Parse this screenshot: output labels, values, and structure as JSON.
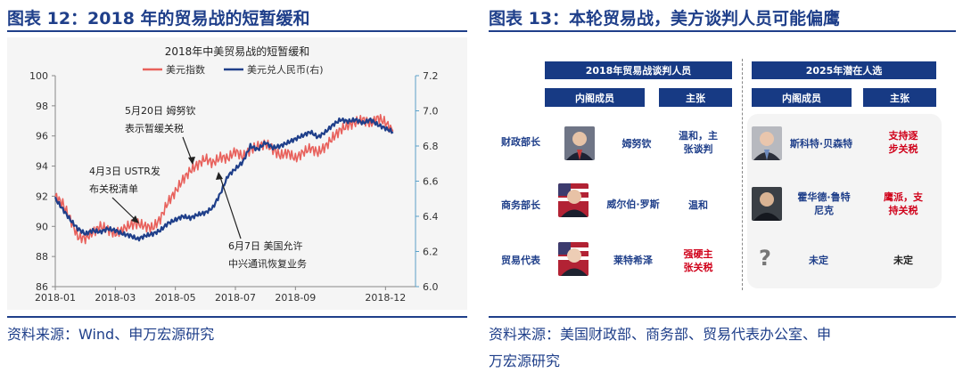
{
  "left": {
    "figure_title": "图表 12：2018 年的贸易战的短暂缓和",
    "source": "资料来源：Wind、申万宏源研究",
    "chart_data": {
      "type": "line",
      "title": "2018年中美贸易战的短暂缓和",
      "legend": [
        "美元指数",
        "美元兑人民币(右)"
      ],
      "legend_position": "top",
      "x_ticks": [
        "2018-01",
        "2018-03",
        "2018-05",
        "2018-07",
        "2018-09",
        "2018-12"
      ],
      "y_left": {
        "min": 86,
        "max": 100,
        "ticks": [
          86,
          88,
          90,
          92,
          94,
          96,
          98,
          100
        ]
      },
      "y_right": {
        "min": 6.0,
        "max": 7.2,
        "ticks": [
          "6.0",
          "6.2",
          "6.4",
          "6.6",
          "6.8",
          "7.0",
          "7.2"
        ]
      },
      "x_range": [
        0,
        12
      ],
      "series": [
        {
          "name": "美元指数",
          "axis": "left",
          "color": "#e8615c",
          "x": [
            0,
            0.25,
            0.5,
            0.75,
            1,
            1.25,
            1.5,
            1.75,
            2,
            2.25,
            2.5,
            2.75,
            3,
            3.25,
            3.5,
            3.75,
            4,
            4.25,
            4.5,
            4.75,
            5,
            5.25,
            5.5,
            5.75,
            6,
            6.25,
            6.5,
            6.75,
            7,
            7.25,
            7.5,
            7.75,
            8,
            8.25,
            8.5,
            8.75,
            9,
            9.25,
            9.5,
            9.75,
            10,
            10.25,
            10.5,
            10.75,
            11,
            11.25
          ],
          "y": [
            92,
            91.5,
            90.5,
            89.3,
            89.2,
            89.6,
            90,
            89.8,
            89.5,
            89.8,
            90.1,
            90.2,
            90,
            89.9,
            90.5,
            91.6,
            92.3,
            93.1,
            93.7,
            94.1,
            94.5,
            94.2,
            94.6,
            94.5,
            95,
            94.6,
            95.1,
            95.3,
            95.5,
            95.1,
            94.7,
            94.9,
            94.5,
            94.9,
            95.2,
            94.9,
            95.3,
            95.9,
            96.4,
            96.7,
            96.9,
            97.1,
            96.8,
            97.2,
            96.9,
            96.3
          ]
        },
        {
          "name": "美元兑人民币(右)",
          "axis": "right",
          "color": "#1f3f8a",
          "x": [
            0,
            0.25,
            0.5,
            0.75,
            1,
            1.25,
            1.5,
            1.75,
            2,
            2.25,
            2.5,
            2.75,
            3,
            3.25,
            3.5,
            3.75,
            4,
            4.25,
            4.5,
            4.75,
            5,
            5.25,
            5.5,
            5.75,
            6,
            6.25,
            6.5,
            6.75,
            7,
            7.25,
            7.5,
            7.75,
            8,
            8.25,
            8.5,
            8.75,
            9,
            9.25,
            9.5,
            9.75,
            10,
            10.25,
            10.5,
            10.75,
            11,
            11.25
          ],
          "y": [
            6.5,
            6.44,
            6.38,
            6.33,
            6.3,
            6.32,
            6.31,
            6.33,
            6.32,
            6.3,
            6.29,
            6.27,
            6.29,
            6.3,
            6.32,
            6.36,
            6.38,
            6.4,
            6.39,
            6.41,
            6.42,
            6.45,
            6.53,
            6.63,
            6.67,
            6.71,
            6.8,
            6.78,
            6.82,
            6.79,
            6.8,
            6.82,
            6.84,
            6.86,
            6.88,
            6.85,
            6.88,
            6.92,
            6.95,
            6.94,
            6.95,
            6.93,
            6.95,
            6.92,
            6.9,
            6.88
          ]
        }
      ],
      "annotations": [
        {
          "lines": [
            "5月20日 姆努钦",
            "表示暂缓关税"
          ]
        },
        {
          "lines": [
            "4月3日 USTR发",
            "布关税清单"
          ]
        },
        {
          "lines": [
            "6月7日 美国允许",
            "中兴通讯恢复业务"
          ]
        }
      ]
    }
  },
  "right": {
    "figure_title": "图表 13：本轮贸易战，美方谈判人员可能偏鹰",
    "source_line1": "资料来源：美国财政部、商务部、贸易代表办公室、申",
    "source_line2": "万宏源研究",
    "table": {
      "group1_header": "2018年贸易战谈判人员",
      "group2_header": "2025年潜在人选",
      "col_member": "内阁成员",
      "col_position": "主张",
      "rows": [
        {
          "role": "财政部长",
          "name_2018": "姆努钦",
          "stance_2018": [
            "温和，主",
            "张谈判"
          ],
          "name_2025": [
            "斯科特·贝森特"
          ],
          "stance_2025": [
            "支持逐",
            "步关税"
          ]
        },
        {
          "role": "商务部长",
          "name_2018": "威尔伯·罗斯",
          "stance_2018": [
            "温和"
          ],
          "name_2025": [
            "霍华德·鲁特",
            "尼克"
          ],
          "stance_2025": [
            "鹰派，支",
            "持关税"
          ]
        },
        {
          "role": "贸易代表",
          "name_2018": "莱特希泽",
          "stance_2018": [
            "强硬主",
            "张关税"
          ],
          "name_2025": [
            "未定"
          ],
          "stance_2025": [
            "未定"
          ]
        }
      ],
      "colors": {
        "header": "#173a84",
        "stance_2018": "#1f3f8a",
        "stance_2025": "#d0021b"
      },
      "icons": [
        "portrait-mnuchin-icon",
        "portrait-ross-icon",
        "portrait-lighthizer-icon",
        "portrait-bessent-icon",
        "portrait-lutnick-icon",
        "question-mark-icon"
      ]
    }
  }
}
